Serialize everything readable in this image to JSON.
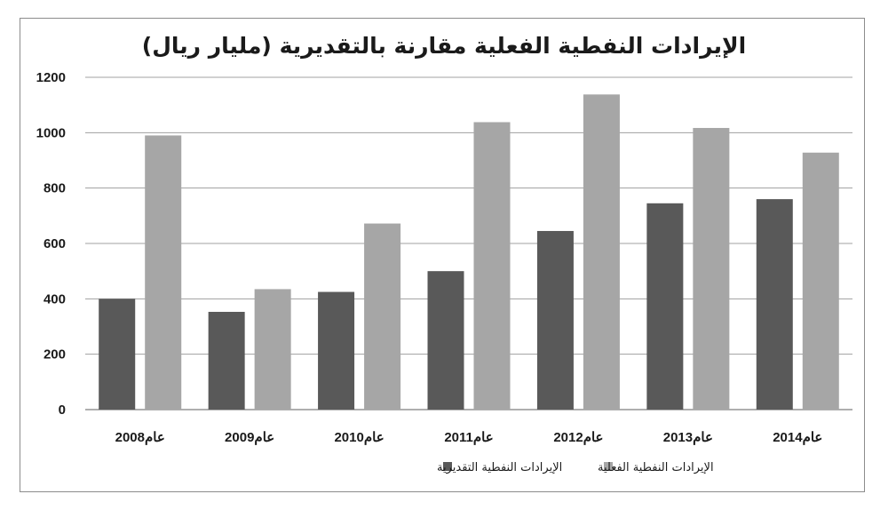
{
  "chart_data": {
    "type": "bar",
    "title": "الإيرادات النفطية الفعلية مقارنة بالتقديرية (مليار ريال)",
    "categories": [
      "2008عام",
      "2009عام",
      "2010عام",
      "2011عام",
      "2012عام",
      "2013عام",
      "2014عام"
    ],
    "series": [
      {
        "name": "الإيرادات النفطية التقديرية",
        "color": "#595959",
        "values": [
          400,
          353,
          425,
          500,
          645,
          745,
          760
        ]
      },
      {
        "name": "الإيرادات النفطية الفعلية",
        "color": "#a6a6a6",
        "values": [
          990,
          435,
          672,
          1038,
          1138,
          1017,
          928
        ]
      }
    ],
    "ylim": [
      0,
      1200
    ],
    "yticks": [
      0,
      200,
      400,
      600,
      800,
      1000,
      1200
    ],
    "grid": true,
    "legend_position": "bottom"
  }
}
